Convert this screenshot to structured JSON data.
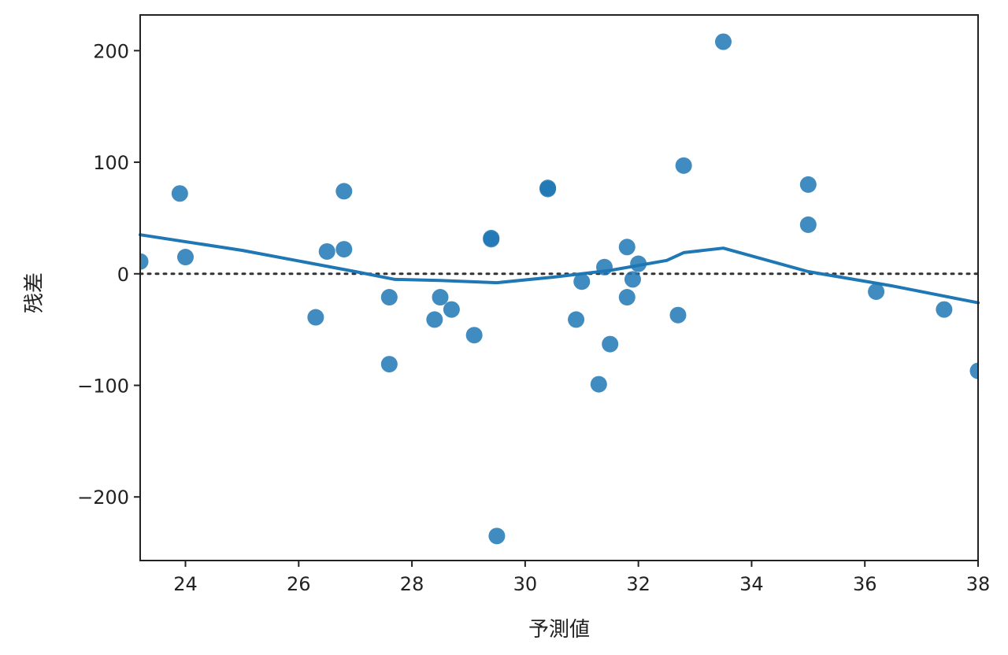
{
  "chart_data": {
    "type": "scatter",
    "xlabel": "予測値",
    "ylabel": "残差",
    "xlim": [
      23.2,
      38.0
    ],
    "ylim": [
      -257,
      232
    ],
    "xticks": [
      24,
      26,
      28,
      30,
      32,
      34,
      36,
      38
    ],
    "yticks": [
      -200,
      -100,
      0,
      100,
      200
    ],
    "ytick_labels": [
      "−200",
      "−100",
      "0",
      "100",
      "200"
    ],
    "grid": false,
    "reference_line": {
      "y": 0,
      "style": "dotted"
    },
    "colors": {
      "points": "#1f77b4",
      "line": "#1f77b4",
      "reference": "#333333"
    },
    "points": [
      {
        "x": 23.2,
        "y": 11
      },
      {
        "x": 23.9,
        "y": 72
      },
      {
        "x": 24.0,
        "y": 15
      },
      {
        "x": 26.3,
        "y": -39
      },
      {
        "x": 26.5,
        "y": 20
      },
      {
        "x": 26.8,
        "y": 74
      },
      {
        "x": 26.8,
        "y": 22
      },
      {
        "x": 27.6,
        "y": -21
      },
      {
        "x": 27.6,
        "y": -81
      },
      {
        "x": 28.4,
        "y": -41
      },
      {
        "x": 28.5,
        "y": -21
      },
      {
        "x": 28.7,
        "y": -32
      },
      {
        "x": 29.1,
        "y": -55
      },
      {
        "x": 29.4,
        "y": 31
      },
      {
        "x": 29.4,
        "y": 32
      },
      {
        "x": 29.5,
        "y": -235
      },
      {
        "x": 30.4,
        "y": 76
      },
      {
        "x": 30.4,
        "y": 77
      },
      {
        "x": 30.9,
        "y": -41
      },
      {
        "x": 31.0,
        "y": -7
      },
      {
        "x": 31.3,
        "y": -99
      },
      {
        "x": 31.4,
        "y": 6
      },
      {
        "x": 31.5,
        "y": -63
      },
      {
        "x": 31.8,
        "y": 24
      },
      {
        "x": 31.8,
        "y": -21
      },
      {
        "x": 31.9,
        "y": -5
      },
      {
        "x": 32.0,
        "y": 9
      },
      {
        "x": 32.7,
        "y": -37
      },
      {
        "x": 32.8,
        "y": 97
      },
      {
        "x": 33.5,
        "y": 208
      },
      {
        "x": 35.0,
        "y": 80
      },
      {
        "x": 35.0,
        "y": 44
      },
      {
        "x": 36.2,
        "y": -16
      },
      {
        "x": 37.4,
        "y": -32
      },
      {
        "x": 38.0,
        "y": -87
      }
    ],
    "lowess": [
      {
        "x": 23.2,
        "y": 35
      },
      {
        "x": 25.0,
        "y": 21
      },
      {
        "x": 27.0,
        "y": 2
      },
      {
        "x": 27.7,
        "y": -5
      },
      {
        "x": 28.5,
        "y": -6
      },
      {
        "x": 29.5,
        "y": -8
      },
      {
        "x": 30.5,
        "y": -3
      },
      {
        "x": 31.5,
        "y": 3
      },
      {
        "x": 32.5,
        "y": 12
      },
      {
        "x": 32.8,
        "y": 19
      },
      {
        "x": 33.5,
        "y": 23
      },
      {
        "x": 35.0,
        "y": 2
      },
      {
        "x": 36.5,
        "y": -11
      },
      {
        "x": 38.0,
        "y": -26
      }
    ]
  }
}
